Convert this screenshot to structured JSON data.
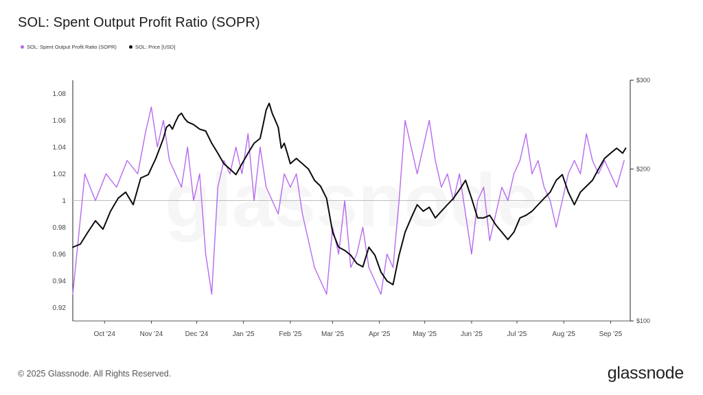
{
  "title": "SOL: Spent Output Profit Ratio (SOPR)",
  "footer": "© 2025 Glassnode. All Rights Reserved.",
  "brand": "glassnode",
  "watermark": "glassnode",
  "colors": {
    "sopr": "#b768ee",
    "price": "#0a0a0a",
    "refline": "#bdbdbd",
    "axis": "#222222"
  },
  "chart_data": {
    "type": "line",
    "title": "SOL: Spent Output Profit Ratio (SOPR)",
    "legend": [
      "SOL: Spent Output Profit Ratio (SOPR)",
      "SOL: Price [USD]"
    ],
    "x_range": [
      "2024-09-10",
      "2025-09-14"
    ],
    "x_ticks": [
      "Oct '24",
      "Nov '24",
      "Dec '24",
      "Jan '25",
      "Feb '25",
      "Mar '25",
      "Apr '25",
      "May '25",
      "Jun '25",
      "Jul '25",
      "Aug '25",
      "Sep '25"
    ],
    "x_tick_days": [
      21,
      52,
      82,
      113,
      144,
      172,
      203,
      233,
      264,
      294,
      325,
      356
    ],
    "y_left": {
      "min": 0.91,
      "max": 1.09,
      "ticks": [
        0.92,
        0.94,
        0.96,
        0.98,
        1,
        1.02,
        1.04,
        1.06,
        1.08
      ]
    },
    "y_right": {
      "scale": "log",
      "min": 100,
      "max": 300,
      "ticks": [
        100,
        200,
        300
      ],
      "tick_labels": [
        "$100",
        "$200",
        "$300"
      ]
    },
    "reference_line": 1,
    "series": [
      {
        "name": "SOL: Spent Output Profit Ratio (SOPR)",
        "axis": "left",
        "x_day": [
          0,
          8,
          15,
          22,
          29,
          36,
          43,
          48,
          52,
          56,
          60,
          64,
          68,
          72,
          76,
          80,
          84,
          88,
          92,
          96,
          100,
          104,
          108,
          112,
          116,
          120,
          124,
          128,
          132,
          136,
          140,
          144,
          148,
          152,
          156,
          160,
          164,
          168,
          172,
          176,
          180,
          184,
          188,
          192,
          196,
          200,
          204,
          208,
          212,
          216,
          220,
          224,
          228,
          232,
          236,
          240,
          244,
          248,
          252,
          256,
          260,
          264,
          268,
          272,
          276,
          280,
          284,
          288,
          292,
          296,
          300,
          304,
          308,
          312,
          316,
          320,
          324,
          328,
          332,
          336,
          340,
          344,
          348,
          352,
          356,
          360,
          365
        ],
        "values": [
          0.93,
          1.02,
          1.0,
          1.02,
          1.01,
          1.03,
          1.02,
          1.05,
          1.07,
          1.04,
          1.06,
          1.03,
          1.02,
          1.01,
          1.04,
          1.0,
          1.02,
          0.96,
          0.93,
          1.01,
          1.03,
          1.02,
          1.04,
          1.02,
          1.05,
          1.0,
          1.04,
          1.01,
          1.0,
          0.99,
          1.02,
          1.01,
          1.02,
          0.99,
          0.97,
          0.95,
          0.94,
          0.93,
          0.98,
          0.96,
          1.0,
          0.95,
          0.96,
          0.98,
          0.95,
          0.94,
          0.93,
          0.96,
          0.95,
          1.0,
          1.06,
          1.04,
          1.02,
          1.04,
          1.06,
          1.03,
          1.01,
          1.02,
          1.0,
          1.02,
          0.99,
          0.96,
          1.0,
          1.01,
          0.97,
          0.99,
          1.01,
          1.0,
          1.02,
          1.03,
          1.05,
          1.02,
          1.03,
          1.01,
          1.0,
          0.98,
          1.0,
          1.02,
          1.03,
          1.02,
          1.05,
          1.03,
          1.02,
          1.03,
          1.02,
          1.01,
          1.03
        ]
      },
      {
        "name": "SOL: Price [USD]",
        "axis": "right",
        "x_day": [
          0,
          5,
          10,
          15,
          20,
          25,
          30,
          35,
          40,
          45,
          50,
          55,
          60,
          62,
          64,
          66,
          68,
          70,
          72,
          74,
          76,
          80,
          84,
          88,
          92,
          96,
          100,
          104,
          108,
          112,
          116,
          120,
          124,
          126,
          128,
          130,
          132,
          134,
          136,
          138,
          140,
          142,
          144,
          148,
          152,
          156,
          160,
          164,
          168,
          172,
          176,
          180,
          184,
          188,
          192,
          196,
          200,
          204,
          208,
          212,
          216,
          220,
          224,
          228,
          232,
          236,
          240,
          244,
          248,
          252,
          256,
          260,
          264,
          268,
          272,
          276,
          280,
          284,
          288,
          292,
          296,
          300,
          304,
          308,
          312,
          316,
          320,
          324,
          328,
          332,
          336,
          340,
          344,
          348,
          352,
          356,
          360,
          364,
          366
        ],
        "values": [
          140,
          142,
          150,
          158,
          152,
          165,
          175,
          180,
          170,
          192,
          195,
          210,
          230,
          242,
          245,
          240,
          248,
          255,
          258,
          252,
          248,
          245,
          240,
          238,
          225,
          215,
          205,
          200,
          195,
          205,
          215,
          225,
          230,
          245,
          262,
          270,
          258,
          250,
          242,
          220,
          225,
          215,
          205,
          210,
          205,
          200,
          190,
          185,
          175,
          150,
          140,
          138,
          135,
          130,
          128,
          140,
          135,
          125,
          120,
          118,
          135,
          150,
          160,
          170,
          165,
          168,
          160,
          165,
          170,
          175,
          182,
          190,
          175,
          160,
          160,
          162,
          155,
          150,
          145,
          150,
          160,
          162,
          165,
          170,
          175,
          180,
          190,
          195,
          180,
          170,
          180,
          185,
          190,
          200,
          210,
          215,
          220,
          215,
          220
        ]
      }
    ]
  }
}
